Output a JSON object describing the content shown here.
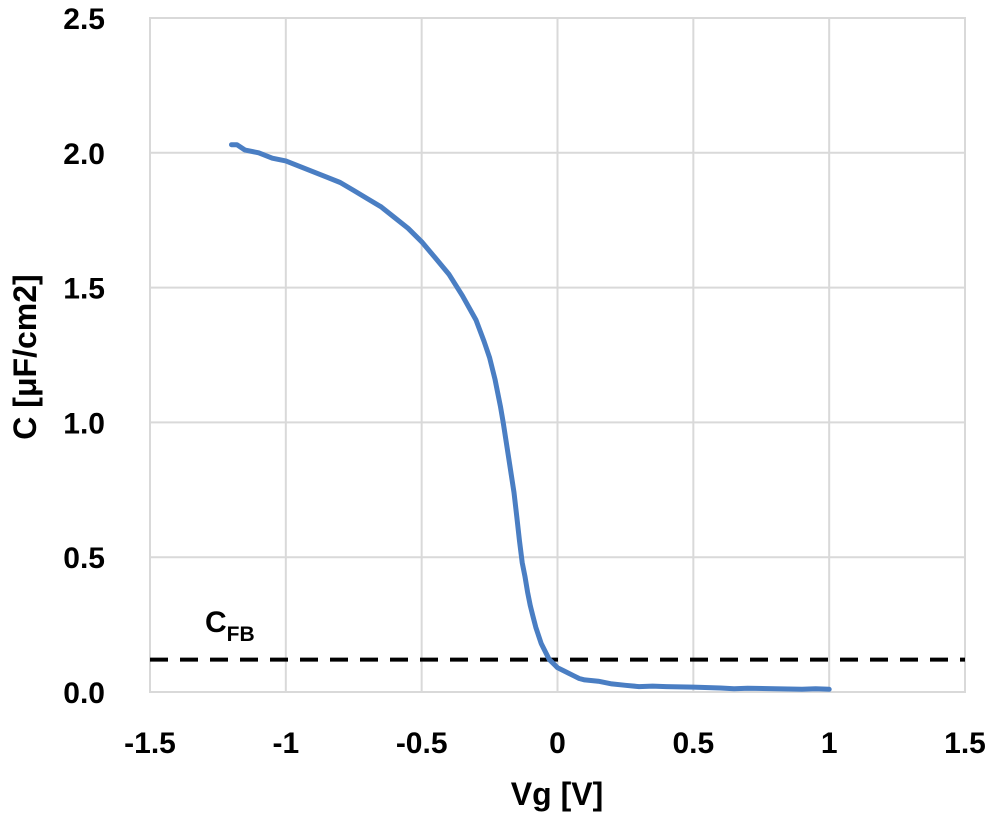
{
  "chart_data": {
    "type": "line",
    "xlabel": "Vg [V]",
    "ylabel": "C [μF/cm2]",
    "xlim": [
      -1.5,
      1.5
    ],
    "ylim": [
      0.0,
      2.5
    ],
    "x_ticks": [
      "-1.5",
      "-1",
      "-0.5",
      "0",
      "0.5",
      "1",
      "1.5"
    ],
    "y_ticks": [
      "0.0",
      "0.5",
      "1.0",
      "1.5",
      "2.0",
      "2.5"
    ],
    "grid": true,
    "series": [
      {
        "color": "#4a7ec3",
        "x": [
          -1.2,
          -1.18,
          -1.15,
          -1.1,
          -1.05,
          -1.0,
          -0.95,
          -0.9,
          -0.85,
          -0.8,
          -0.75,
          -0.7,
          -0.65,
          -0.6,
          -0.55,
          -0.5,
          -0.45,
          -0.4,
          -0.35,
          -0.3,
          -0.27,
          -0.25,
          -0.23,
          -0.21,
          -0.2,
          -0.18,
          -0.16,
          -0.15,
          -0.14,
          -0.13,
          -0.12,
          -0.11,
          -0.1,
          -0.09,
          -0.08,
          -0.07,
          -0.06,
          -0.05,
          -0.04,
          -0.03,
          -0.02,
          -0.01,
          0.0,
          0.02,
          0.04,
          0.06,
          0.08,
          0.1,
          0.15,
          0.2,
          0.25,
          0.3,
          0.35,
          0.4,
          0.5,
          0.6,
          0.65,
          0.7,
          0.8,
          0.9,
          0.95,
          1.0
        ],
        "y": [
          2.03,
          2.03,
          2.01,
          2.0,
          1.98,
          1.97,
          1.95,
          1.93,
          1.91,
          1.89,
          1.86,
          1.83,
          1.8,
          1.76,
          1.72,
          1.67,
          1.61,
          1.55,
          1.47,
          1.38,
          1.3,
          1.24,
          1.16,
          1.06,
          1.0,
          0.87,
          0.74,
          0.65,
          0.56,
          0.48,
          0.43,
          0.37,
          0.32,
          0.28,
          0.24,
          0.21,
          0.18,
          0.16,
          0.14,
          0.12,
          0.11,
          0.1,
          0.09,
          0.08,
          0.07,
          0.06,
          0.05,
          0.045,
          0.04,
          0.03,
          0.025,
          0.02,
          0.022,
          0.02,
          0.018,
          0.015,
          0.012,
          0.014,
          0.012,
          0.01,
          0.012,
          0.01
        ]
      }
    ],
    "reference_line": {
      "y": 0.12,
      "style": "dashed",
      "color": "#000000"
    },
    "annotation": {
      "text": "C",
      "subscript": "FB"
    }
  }
}
